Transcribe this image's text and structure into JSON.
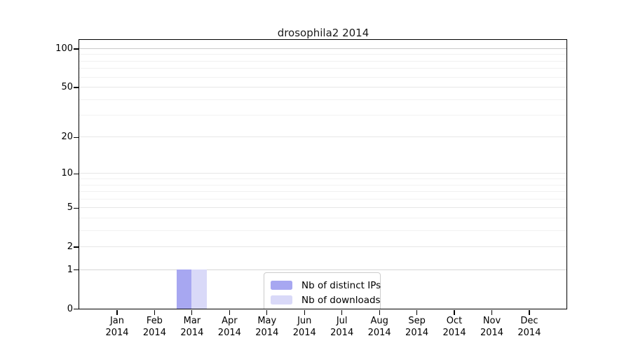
{
  "chart_data": {
    "type": "bar",
    "title": "drosophila2 2014",
    "year_label": "2014",
    "categories": [
      "Jan",
      "Feb",
      "Mar",
      "Apr",
      "May",
      "Jun",
      "Jul",
      "Aug",
      "Sep",
      "Oct",
      "Nov",
      "Dec"
    ],
    "series": [
      {
        "name": "Nb of distinct IPs",
        "color": "#a7a7f1",
        "values": [
          0,
          0,
          1,
          0,
          0,
          0,
          0,
          0,
          0,
          0,
          0,
          0
        ]
      },
      {
        "name": "Nb of downloads",
        "color": "#d9d9f8",
        "values": [
          0,
          0,
          1,
          0,
          0,
          0,
          0,
          0,
          0,
          0,
          0,
          0
        ]
      }
    ],
    "y_scale": "log1p",
    "ylim": [
      0,
      100
    ],
    "y_ticks": [
      0,
      1,
      2,
      5,
      10,
      20,
      50,
      100
    ],
    "y_major_gridlines": [
      1,
      2,
      5,
      10,
      20,
      50,
      100
    ],
    "y_minor_gridlines": [
      3,
      4,
      6,
      7,
      8,
      9,
      30,
      40,
      60,
      70,
      80,
      90
    ],
    "grid": true,
    "legend_position": "bottom-center",
    "colors": {
      "axis": "#000000",
      "gridline_major": "#e7e7e7",
      "gridline_minor": "#f1f1f1",
      "gridline_top": "#c8c8c8",
      "legend_border": "#cccccc",
      "background": "#ffffff"
    }
  }
}
